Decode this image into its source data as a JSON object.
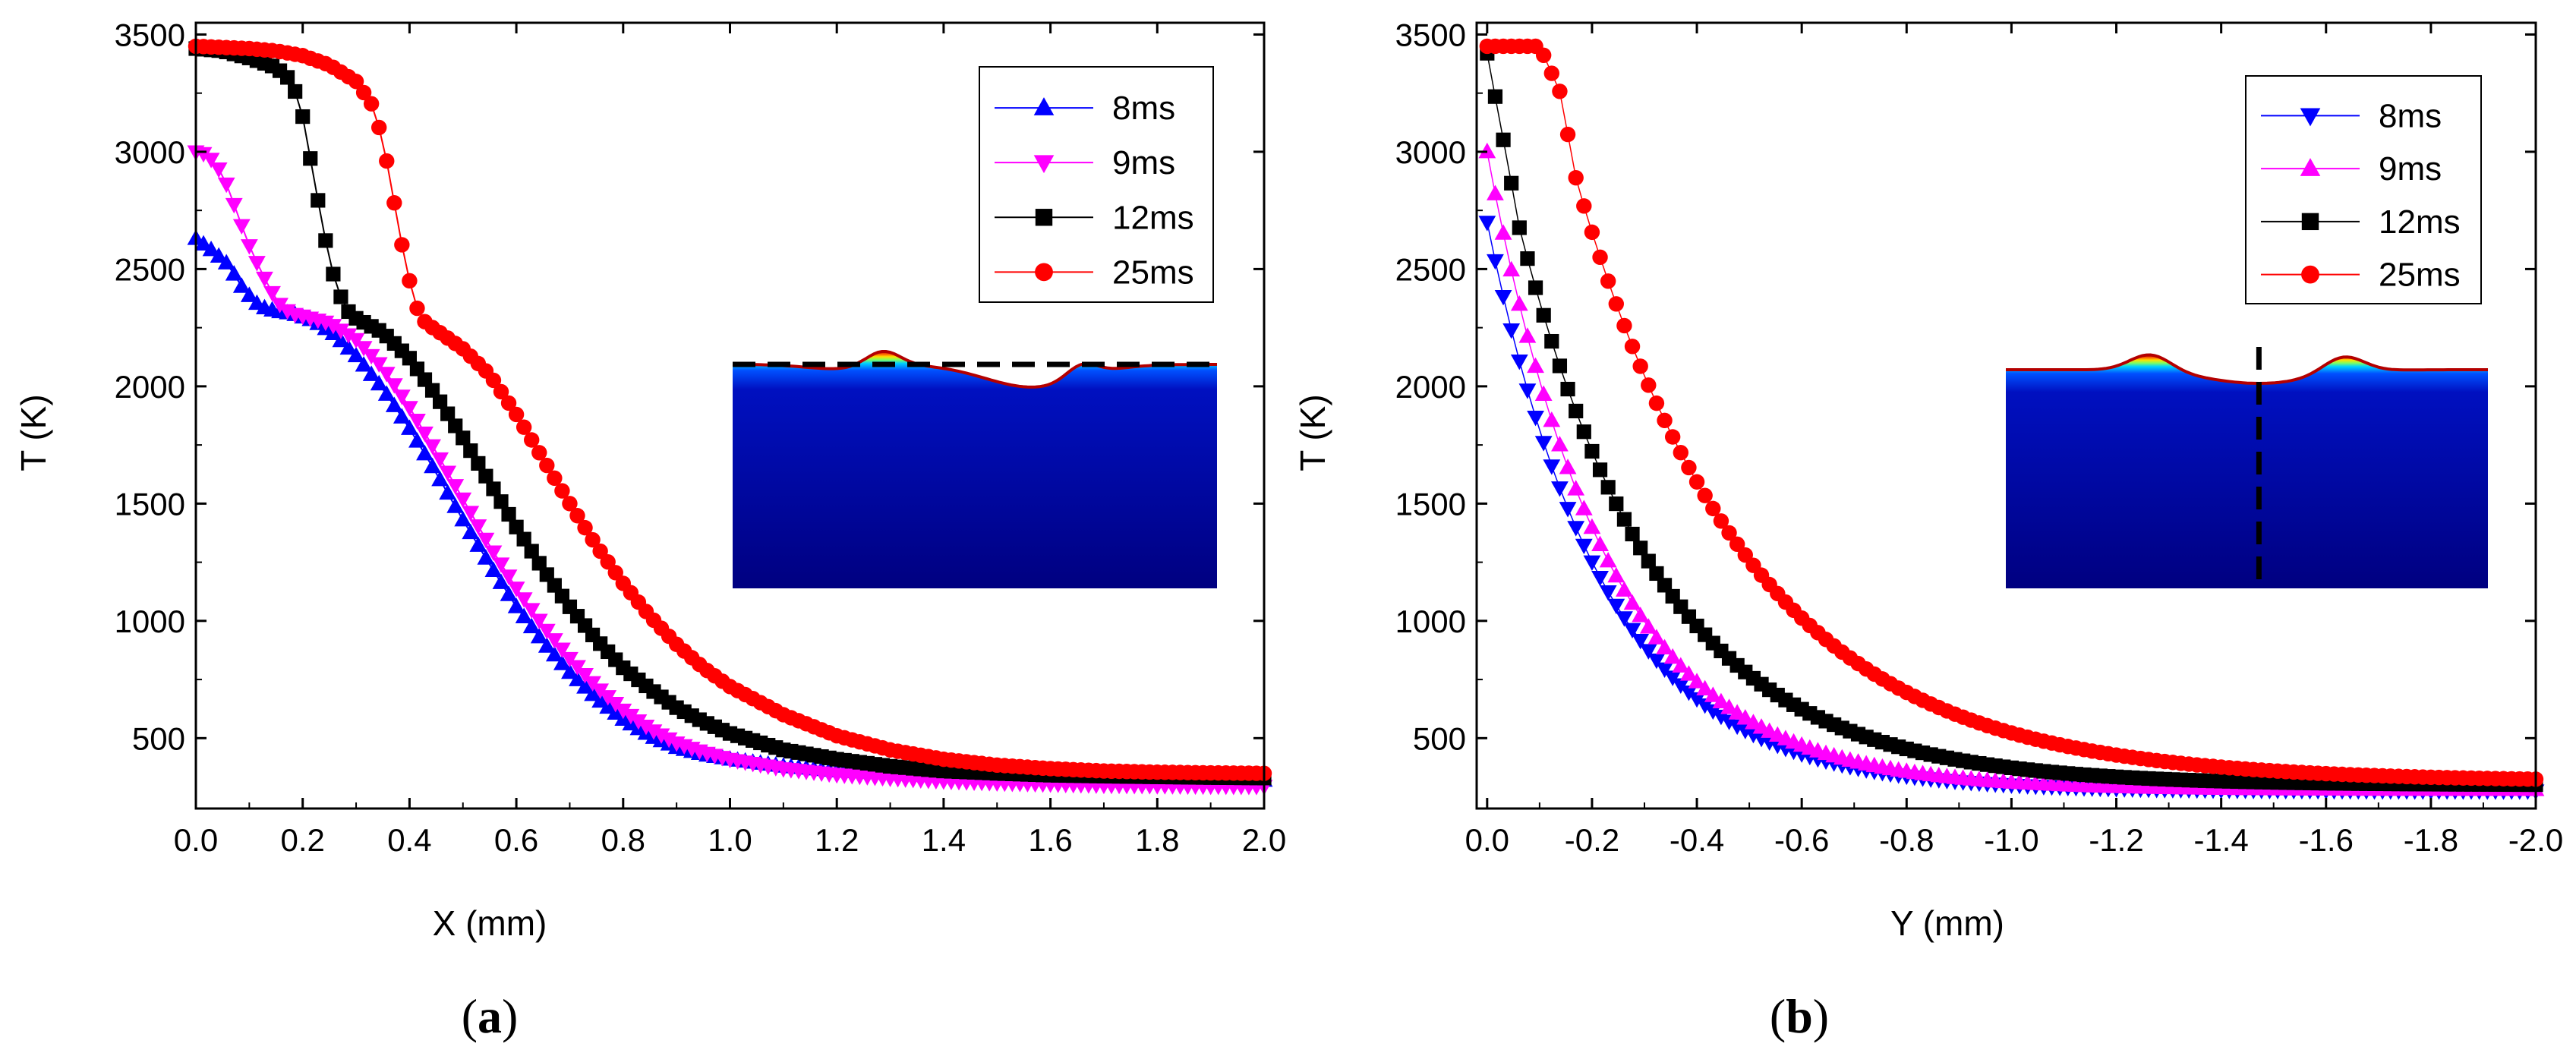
{
  "chart_data": [
    {
      "type": "line",
      "panel": "a",
      "panel_label": "a",
      "xlabel": "X (mm)",
      "ylabel": "T (K)",
      "xlim": [
        0.0,
        2.0
      ],
      "ylim": [
        200,
        3550
      ],
      "xticks": [
        "0.0",
        "0.2",
        "0.4",
        "0.6",
        "0.8",
        "1.0",
        "1.2",
        "1.4",
        "1.6",
        "1.8",
        "2.0"
      ],
      "yticks": [
        "500",
        "1000",
        "1500",
        "2000",
        "2500",
        "3000",
        "3500"
      ],
      "legend": [
        "8ms",
        "9ms",
        "12ms",
        "25ms"
      ],
      "legend_position": "top-right",
      "series": [
        {
          "name": "8ms",
          "color": "#0000ff",
          "marker": "triangle-up",
          "x": [
            0.0,
            0.03,
            0.06,
            0.09,
            0.12,
            0.15,
            0.18,
            0.22,
            0.26,
            0.3,
            0.35,
            0.4,
            0.45,
            0.5,
            0.55,
            0.6,
            0.65,
            0.7,
            0.75,
            0.8,
            0.85,
            0.9,
            0.95,
            1.0,
            1.1,
            1.2,
            1.3,
            1.4,
            1.5,
            1.6,
            1.7,
            1.8,
            1.9,
            2.0
          ],
          "y": [
            2630,
            2580,
            2520,
            2410,
            2340,
            2320,
            2310,
            2280,
            2220,
            2130,
            1990,
            1820,
            1630,
            1430,
            1240,
            1060,
            910,
            780,
            670,
            580,
            510,
            460,
            430,
            410,
            380,
            360,
            350,
            340,
            335,
            330,
            328,
            325,
            322,
            320
          ]
        },
        {
          "name": "9ms",
          "color": "#ff00ff",
          "marker": "triangle-down",
          "x": [
            0.0,
            0.02,
            0.04,
            0.06,
            0.08,
            0.1,
            0.12,
            0.14,
            0.16,
            0.18,
            0.2,
            0.25,
            0.3,
            0.35,
            0.4,
            0.45,
            0.5,
            0.55,
            0.6,
            0.65,
            0.7,
            0.75,
            0.8,
            0.85,
            0.9,
            0.95,
            1.0,
            1.1,
            1.2,
            1.3,
            1.4,
            1.5,
            1.6,
            1.7,
            1.8,
            1.9,
            2.0
          ],
          "y": [
            3000,
            2990,
            2940,
            2850,
            2720,
            2600,
            2500,
            2410,
            2340,
            2310,
            2300,
            2270,
            2200,
            2080,
            1910,
            1720,
            1520,
            1320,
            1140,
            980,
            840,
            720,
            620,
            540,
            480,
            440,
            410,
            370,
            345,
            330,
            318,
            310,
            305,
            300,
            298,
            296,
            295
          ]
        },
        {
          "name": "12ms",
          "color": "#000000",
          "marker": "square",
          "x": [
            0.0,
            0.05,
            0.1,
            0.15,
            0.18,
            0.2,
            0.22,
            0.24,
            0.26,
            0.28,
            0.3,
            0.35,
            0.4,
            0.45,
            0.5,
            0.55,
            0.6,
            0.65,
            0.7,
            0.75,
            0.8,
            0.85,
            0.9,
            0.95,
            1.0,
            1.1,
            1.2,
            1.3,
            1.4,
            1.5,
            1.6,
            1.7,
            1.8,
            1.9,
            2.0
          ],
          "y": [
            3440,
            3430,
            3400,
            3360,
            3300,
            3150,
            2900,
            2650,
            2450,
            2330,
            2290,
            2230,
            2120,
            1960,
            1780,
            1590,
            1400,
            1220,
            1060,
            920,
            800,
            710,
            630,
            570,
            520,
            450,
            410,
            380,
            360,
            350,
            342,
            338,
            335,
            332,
            330
          ]
        },
        {
          "name": "25ms",
          "color": "#ff0000",
          "marker": "circle",
          "x": [
            0.0,
            0.05,
            0.1,
            0.15,
            0.2,
            0.25,
            0.3,
            0.33,
            0.35,
            0.37,
            0.39,
            0.41,
            0.43,
            0.45,
            0.5,
            0.55,
            0.6,
            0.65,
            0.7,
            0.75,
            0.8,
            0.85,
            0.9,
            0.95,
            1.0,
            1.1,
            1.2,
            1.3,
            1.4,
            1.5,
            1.6,
            1.7,
            1.8,
            1.9,
            2.0
          ],
          "y": [
            3450,
            3445,
            3440,
            3430,
            3410,
            3370,
            3300,
            3200,
            3050,
            2800,
            2550,
            2350,
            2270,
            2240,
            2160,
            2050,
            1880,
            1690,
            1500,
            1320,
            1160,
            1020,
            900,
            800,
            720,
            600,
            510,
            450,
            410,
            385,
            370,
            360,
            355,
            352,
            350
          ]
        }
      ]
    },
    {
      "type": "scatter",
      "panel": "b",
      "panel_label": "b",
      "xlabel": "Y (mm)",
      "ylabel": "T (K)",
      "xlim": [
        0.02,
        -2.0
      ],
      "ylim": [
        200,
        3550
      ],
      "xticks": [
        "0.0",
        "-0.2",
        "-0.4",
        "-0.6",
        "-0.8",
        "-1.0",
        "-1.2",
        "-1.4",
        "-1.6",
        "-1.8",
        "-2.0"
      ],
      "yticks": [
        "500",
        "1000",
        "1500",
        "2000",
        "2500",
        "3000",
        "3500"
      ],
      "legend": [
        "8ms",
        "9ms",
        "12ms",
        "25ms"
      ],
      "legend_position": "top-right",
      "series": [
        {
          "name": "8ms",
          "color": "#0000ff",
          "marker": "triangle-down",
          "t0": 2700,
          "x0": 0.0,
          "tau": 0.22,
          "Tinf": 275
        },
        {
          "name": "9ms",
          "color": "#ff00ff",
          "marker": "triangle-up",
          "t0": 3000,
          "x0": 0.0,
          "tau": 0.225,
          "Tinf": 280
        },
        {
          "name": "12ms",
          "color": "#000000",
          "marker": "square",
          "t0": 3420,
          "x0": 0.0,
          "tau": 0.27,
          "Tinf": 300
        },
        {
          "name": "25ms",
          "color": "#ff0000",
          "marker": "circle",
          "t0": 3450,
          "x0": 0.0,
          "tau": 0.33,
          "Tinf": 315
        }
      ]
    }
  ]
}
